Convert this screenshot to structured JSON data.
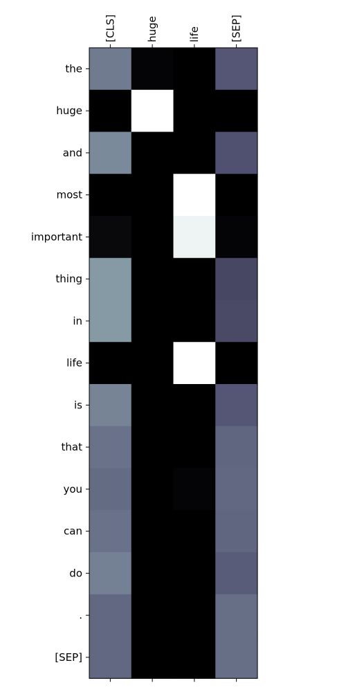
{
  "chart_data": {
    "type": "heatmap",
    "columns": [
      "[CLS]",
      "huge",
      "life",
      "[SEP]"
    ],
    "rows": [
      "the",
      "huge",
      "and",
      "most",
      "important",
      "thing",
      "in",
      "life",
      "is",
      "that",
      "you",
      "can",
      "do",
      ".",
      "[SEP]"
    ],
    "values": [
      [
        0.5,
        0.02,
        0.0,
        0.38
      ],
      [
        0.0,
        1.0,
        0.0,
        0.0
      ],
      [
        0.55,
        0.0,
        0.0,
        0.36
      ],
      [
        0.0,
        0.0,
        1.0,
        0.0
      ],
      [
        0.04,
        0.0,
        0.95,
        0.02
      ],
      [
        0.6,
        0.0,
        0.0,
        0.32
      ],
      [
        0.6,
        0.0,
        0.0,
        0.33
      ],
      [
        0.0,
        0.0,
        1.0,
        0.0
      ],
      [
        0.53,
        0.0,
        0.0,
        0.38
      ],
      [
        0.47,
        0.0,
        0.0,
        0.43
      ],
      [
        0.45,
        0.0,
        0.02,
        0.44
      ],
      [
        0.47,
        0.0,
        0.0,
        0.43
      ],
      [
        0.52,
        0.0,
        0.0,
        0.4
      ],
      [
        0.44,
        0.0,
        0.0,
        0.46
      ],
      [
        0.44,
        0.0,
        0.0,
        0.46
      ]
    ],
    "colormap": "bone",
    "vmin": 0,
    "vmax": 1,
    "xaxis_position": "top"
  }
}
